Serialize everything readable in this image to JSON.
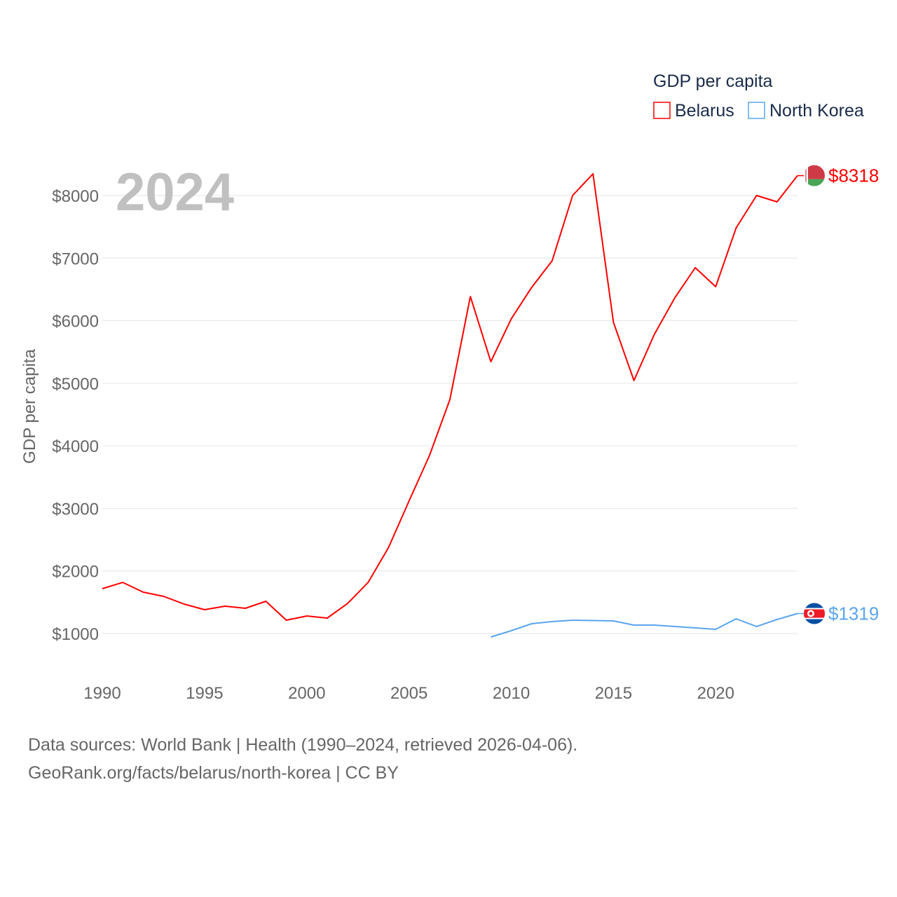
{
  "chart_data": {
    "type": "line",
    "title": "",
    "year_label": "2024",
    "ylabel": "GDP per capita",
    "xlabel": "",
    "legend": {
      "title": "GDP per capita",
      "placement": "top-right"
    },
    "xlim": [
      1990,
      2024
    ],
    "ylim": [
      400,
      8700
    ],
    "x_ticks": [
      1990,
      1995,
      2000,
      2005,
      2010,
      2015,
      2020
    ],
    "y_ticks": [
      1000,
      2000,
      3000,
      4000,
      5000,
      6000,
      7000,
      8000
    ],
    "y_tick_labels": [
      "$1000",
      "$2000",
      "$3000",
      "$4000",
      "$5000",
      "$6000",
      "$7000",
      "$8000"
    ],
    "grid": true,
    "series": [
      {
        "name": "Belarus",
        "color": "#ff0000",
        "end_label": "$8318",
        "flag": "belarus-flag",
        "x": [
          1990,
          1991,
          1992,
          1993,
          1994,
          1995,
          1996,
          1997,
          1998,
          1999,
          2000,
          2001,
          2002,
          2003,
          2004,
          2005,
          2006,
          2007,
          2008,
          2009,
          2010,
          2011,
          2012,
          2013,
          2014,
          2015,
          2016,
          2017,
          2018,
          2019,
          2020,
          2021,
          2022,
          2023,
          2024
        ],
        "values": [
          1717,
          1817,
          1661,
          1594,
          1470,
          1381,
          1437,
          1403,
          1515,
          1213,
          1280,
          1246,
          1481,
          1817,
          2377,
          3116,
          3844,
          4740,
          6386,
          5345,
          6028,
          6532,
          6957,
          8000,
          8347,
          5972,
          5043,
          5782,
          6364,
          6846,
          6543,
          7484,
          8000,
          7899,
          8318
        ]
      },
      {
        "name": "North Korea",
        "color": "#5aa5ee",
        "end_label": "$1319",
        "flag": "north-korea-flag",
        "x": [
          2009,
          2010,
          2011,
          2012,
          2013,
          2014,
          2015,
          2016,
          2017,
          2018,
          2019,
          2020,
          2021,
          2022,
          2023,
          2024
        ],
        "values": [
          944,
          1045,
          1157,
          1190,
          1213,
          1207,
          1202,
          1134,
          1134,
          1112,
          1090,
          1067,
          1235,
          1112,
          1224,
          1319
        ]
      }
    ]
  },
  "footer": {
    "line1": "Data sources: World Bank | Health (1990–2024, retrieved 2026-04-06).",
    "line2": "GeoRank.org/facts/belarus/north-korea | CC BY"
  }
}
